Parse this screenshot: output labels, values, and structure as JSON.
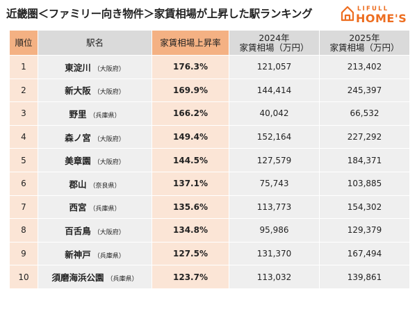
{
  "title": "近畿圏＜ファミリー向き物件＞家賃相場が上昇した駅ランキング",
  "logo": {
    "small": "LIFULL",
    "big": "HOME'S",
    "accent_color": "#ed6d1f"
  },
  "colors": {
    "header_accent": "#f4b183",
    "header_neutral": "#dadada",
    "row_accent": "#fbe5d6",
    "row_neutral": "#efefef"
  },
  "table": {
    "headers": {
      "rank": "順位",
      "name": "駅名",
      "rate": "家賃相場上昇率",
      "price_2024_year": "2024年",
      "price_2024_label": "家賃相場（万円）",
      "price_2025_year": "2025年",
      "price_2025_label": "家賃相場（万円）"
    },
    "rows": [
      {
        "rank": "1",
        "station": "東淀川",
        "pref": "（大阪府）",
        "rate": "176.3%",
        "price_2024": "121,057",
        "price_2025": "213,402"
      },
      {
        "rank": "2",
        "station": "新大阪",
        "pref": "（大阪府）",
        "rate": "169.9%",
        "price_2024": "144,414",
        "price_2025": "245,397"
      },
      {
        "rank": "3",
        "station": "野里",
        "pref": "（兵庫県）",
        "rate": "166.2%",
        "price_2024": "40,042",
        "price_2025": "66,532"
      },
      {
        "rank": "4",
        "station": "森ノ宮",
        "pref": "（大阪府）",
        "rate": "149.4%",
        "price_2024": "152,164",
        "price_2025": "227,292"
      },
      {
        "rank": "5",
        "station": "美章園",
        "pref": "（大阪府）",
        "rate": "144.5%",
        "price_2024": "127,579",
        "price_2025": "184,371"
      },
      {
        "rank": "6",
        "station": "郡山",
        "pref": "（奈良県）",
        "rate": "137.1%",
        "price_2024": "75,743",
        "price_2025": "103,885"
      },
      {
        "rank": "7",
        "station": "西宮",
        "pref": "（兵庫県）",
        "rate": "135.6%",
        "price_2024": "113,773",
        "price_2025": "154,302"
      },
      {
        "rank": "8",
        "station": "百舌鳥",
        "pref": "（大阪府）",
        "rate": "134.8%",
        "price_2024": "95,986",
        "price_2025": "129,379"
      },
      {
        "rank": "9",
        "station": "新神戸",
        "pref": "（兵庫県）",
        "rate": "127.5%",
        "price_2024": "131,370",
        "price_2025": "167,494"
      },
      {
        "rank": "10",
        "station": "須磨海浜公園",
        "pref": "（兵庫県）",
        "rate": "123.7%",
        "price_2024": "113,032",
        "price_2025": "139,861"
      }
    ]
  }
}
